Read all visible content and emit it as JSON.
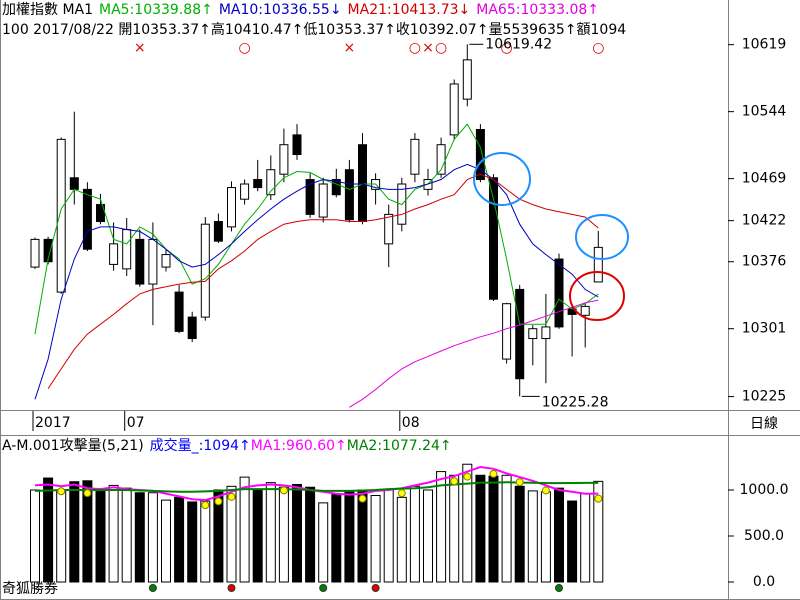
{
  "labels": {
    "period": "日線",
    "brand": "奇狐勝券"
  },
  "chart_data": [
    {
      "type": "candlestick",
      "title": "加權指數 MA1",
      "subtitle": "100 2017/08/22 開10353.37↑高10410.47↑低10353.37↑收10392.07↑量5539635↑額1094",
      "categories": [
        "2017",
        null,
        null,
        null,
        null,
        null,
        null,
        "07",
        null,
        null,
        null,
        null,
        null,
        null,
        null,
        null,
        null,
        null,
        null,
        null,
        null,
        null,
        null,
        null,
        null,
        null,
        null,
        null,
        "08",
        null,
        null,
        null,
        null,
        null,
        null,
        null,
        null,
        null,
        null,
        null,
        null,
        null,
        null,
        null
      ],
      "open": [
        10370,
        10401,
        10342,
        10470,
        10457,
        10440,
        10373,
        10368,
        10401,
        10351,
        10370,
        10342,
        10314,
        10314,
        10421,
        10415,
        10446,
        10468,
        10451,
        10474,
        10518,
        10468,
        10426,
        10468,
        10479,
        10507,
        10457,
        10396,
        10418,
        10474,
        10457,
        10474,
        10518,
        10558,
        10524,
        10470,
        10267,
        10345,
        10290,
        10290,
        10379,
        10323,
        10316,
        10353.37
      ],
      "high": [
        10403,
        10404,
        10515,
        10544,
        10465,
        10452,
        10420,
        10425,
        10412,
        10420,
        10390,
        10350,
        10320,
        10426,
        10430,
        10466,
        10468,
        10490,
        10495,
        10525,
        10530,
        10475,
        10470,
        10480,
        10490,
        10520,
        10475,
        10440,
        10470,
        10520,
        10480,
        10515,
        10580,
        10619.42,
        10530,
        10474,
        10330,
        10350,
        10305,
        10340,
        10385,
        10326,
        10330,
        10410.47
      ],
      "low": [
        10368,
        10373,
        10340,
        10440,
        10388,
        10418,
        10366,
        10360,
        10348,
        10305,
        10365,
        10296,
        10286,
        10310,
        10397,
        10410,
        10440,
        10455,
        10445,
        10465,
        10490,
        10425,
        10420,
        10448,
        10420,
        10418,
        10440,
        10370,
        10410,
        10465,
        10450,
        10470,
        10512,
        10550,
        10465,
        10332,
        10262,
        10225.28,
        10260,
        10240,
        10301,
        10270,
        10280,
        10353.37
      ],
      "close": [
        10401,
        10376,
        10513,
        10457,
        10390,
        10421,
        10396,
        10412,
        10351,
        10401,
        10384,
        10298,
        10290,
        10418,
        10399,
        10459,
        10463,
        10459,
        10479,
        10507,
        10496,
        10429,
        10463,
        10451,
        10423,
        10421,
        10468,
        10429,
        10463,
        10513,
        10468,
        10507,
        10575,
        10602,
        10468,
        10334,
        10329,
        10245,
        10301,
        10303,
        10303,
        10317,
        10326,
        10392.07
      ],
      "series": [
        {
          "name": "MA5:10339.88↑",
          "color": "#00b000",
          "values": [
            10295,
            10379,
            10435,
            10457,
            10451,
            10446,
            10401,
            10396,
            10415,
            10407,
            10390,
            10379,
            10351,
            10357,
            10373,
            10396,
            10418,
            10435,
            10455,
            10470,
            10477,
            10476,
            10468,
            10463,
            10457,
            10463,
            10463,
            10446,
            10440,
            10457,
            10463,
            10479,
            10513,
            10530,
            10504,
            10446,
            10379,
            10306,
            10306,
            10306,
            10334,
            10323,
            10329,
            10339.88
          ]
        },
        {
          "name": "MA10:10336.55↓",
          "color": "#0000c0",
          "values": [
            10222,
            10267,
            10334,
            10379,
            10410,
            10415,
            10415,
            10412,
            10410,
            10401,
            10390,
            10377,
            10370,
            10373,
            10384,
            10396,
            10410,
            10423,
            10435,
            10446,
            10455,
            10463,
            10468,
            10466,
            10463,
            10463,
            10459,
            10457,
            10457,
            10459,
            10463,
            10468,
            10479,
            10485,
            10479,
            10468,
            10451,
            10418,
            10396,
            10384,
            10373,
            10362,
            10345,
            10336.55
          ]
        },
        {
          "name": "MA21:10413.73↓",
          "color": "#d00000",
          "values": [
            null,
            10234,
            10256,
            10278,
            10295,
            10306,
            10317,
            10329,
            10340,
            10345,
            10348,
            10351,
            10353,
            10354,
            10368,
            10377,
            10388,
            10401,
            10410,
            10418,
            10421,
            10423,
            10423,
            10423,
            10421,
            10421,
            10423,
            10426,
            10429,
            10435,
            10440,
            10446,
            10451,
            10468,
            10474,
            10468,
            10457,
            10446,
            10440,
            10435,
            10432,
            10429,
            10426,
            10413.73
          ]
        },
        {
          "name": "MA65:10333.08↑",
          "color": "#e000e0",
          "values": [
            null,
            null,
            null,
            null,
            null,
            null,
            null,
            null,
            null,
            null,
            null,
            null,
            null,
            null,
            null,
            null,
            null,
            null,
            null,
            null,
            null,
            null,
            null,
            null,
            10213,
            10222,
            10233,
            10245,
            10256,
            10264,
            10270,
            10276,
            10282,
            10287,
            10292,
            10296,
            10301,
            10305,
            10310,
            10315,
            10320,
            10325,
            10330,
            10333.08
          ]
        }
      ],
      "top_marks": [
        null,
        null,
        null,
        null,
        null,
        null,
        null,
        null,
        "×",
        null,
        null,
        null,
        null,
        null,
        null,
        null,
        "○",
        null,
        null,
        null,
        null,
        null,
        null,
        null,
        "×",
        null,
        null,
        null,
        null,
        "○",
        "×",
        "○",
        null,
        null,
        null,
        null,
        "○",
        null,
        null,
        null,
        null,
        null,
        null,
        "○"
      ],
      "mark_color": "#e00000",
      "up_color": "#ffffff",
      "down_color": "#000000",
      "ylim": [
        10210,
        10669
      ],
      "yticks": [
        10619,
        10544,
        10469,
        10422,
        10376,
        10301,
        10225
      ]
    },
    {
      "type": "volume",
      "title": "A-M.001攻擊量(5,21)",
      "series": [
        {
          "name": "成交量_:1094↑",
          "color": "#0000ff",
          "values": [
            1000,
            1130,
            1000,
            1090,
            1100,
            1000,
            1050,
            1020,
            970,
            970,
            890,
            920,
            870,
            880,
            1000,
            1040,
            1140,
            1010,
            1080,
            1030,
            1060,
            1030,
            860,
            950,
            980,
            1000,
            940,
            1010,
            920,
            1040,
            1000,
            1200,
            1160,
            1280,
            1160,
            1150,
            1160,
            1040,
            990,
            980,
            1020,
            880,
            960,
            1094
          ]
        },
        {
          "name": "MA1:960.60↑",
          "color": "#ff00ff",
          "values": [
            1050,
            1060,
            1040,
            1060,
            1020,
            1010,
            1030,
            1010,
            1000,
            990,
            960,
            930,
            900,
            890,
            930,
            980,
            1030,
            1050,
            1060,
            1050,
            1030,
            1000,
            980,
            960,
            950,
            960,
            990,
            1000,
            1020,
            1050,
            1080,
            1120,
            1150,
            1200,
            1250,
            1230,
            1180,
            1140,
            1100,
            1050,
            1000,
            980,
            960,
            960.6
          ]
        },
        {
          "name": "MA2:1077.24↑",
          "color": "#008000",
          "values": [
            990,
            995,
            1000,
            1000,
            1000,
            1000,
            1000,
            1000,
            995,
            990,
            985,
            980,
            980,
            985,
            990,
            1000,
            1010,
            1010,
            1010,
            1010,
            1005,
            1000,
            990,
            990,
            990,
            995,
            1000,
            1010,
            1015,
            1020,
            1030,
            1050,
            1060,
            1070,
            1080,
            1080,
            1085,
            1080,
            1078,
            1075,
            1075,
            1076,
            1077,
            1077.24
          ]
        }
      ],
      "ma1_dots": [
        false,
        false,
        true,
        false,
        true,
        false,
        false,
        false,
        false,
        false,
        false,
        false,
        false,
        true,
        true,
        true,
        false,
        false,
        false,
        true,
        false,
        false,
        false,
        false,
        false,
        true,
        false,
        false,
        true,
        false,
        false,
        false,
        true,
        true,
        false,
        true,
        false,
        true,
        false,
        true,
        false,
        false,
        false,
        true
      ],
      "dot_color": "#ffff00",
      "signal_dots": [
        null,
        null,
        null,
        null,
        null,
        null,
        null,
        null,
        null,
        "#008000",
        null,
        null,
        null,
        null,
        null,
        "#e00000",
        null,
        null,
        null,
        null,
        null,
        null,
        "#008000",
        null,
        null,
        null,
        "#e00000",
        null,
        null,
        null,
        null,
        null,
        null,
        null,
        null,
        null,
        null,
        null,
        null,
        null,
        "#008000",
        null,
        null,
        null
      ],
      "ylim": [
        -174,
        1576
      ],
      "yticks": [
        {
          "value": 1000,
          "label": "1000.0"
        },
        {
          "value": 500,
          "label": "500.0"
        },
        {
          "value": 0,
          "label": "0.0"
        }
      ]
    }
  ]
}
